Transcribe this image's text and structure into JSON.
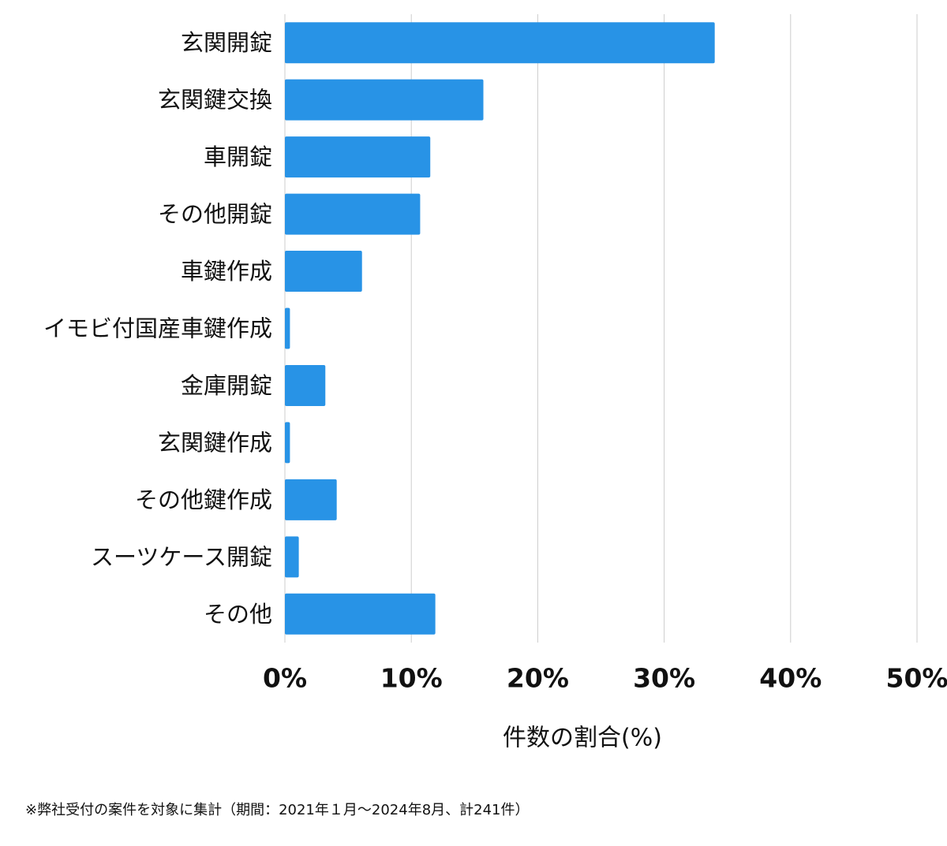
{
  "chart_data": {
    "type": "bar",
    "orientation": "horizontal",
    "categories": [
      "玄関開錠",
      "玄関鍵交換",
      "車開錠",
      "その他開錠",
      "車鍵作成",
      "イモビ付国産車鍵作成",
      "金庫開錠",
      "玄関鍵作成",
      "その他鍵作成",
      "スーツケース開錠",
      "その他"
    ],
    "values": [
      34.0,
      15.7,
      11.5,
      10.7,
      6.1,
      0.4,
      3.2,
      0.4,
      4.1,
      1.1,
      11.9
    ],
    "color": "#2893e6",
    "xlim": [
      0,
      50
    ],
    "xticks": [
      {
        "value": 0,
        "label": "0%"
      },
      {
        "value": 10,
        "label": "10%"
      },
      {
        "value": 20,
        "label": "20%"
      },
      {
        "value": 30,
        "label": "30%"
      },
      {
        "value": 40,
        "label": "40%"
      },
      {
        "value": 50,
        "label": "50%"
      }
    ],
    "xlabel": "件数の割合(%)",
    "grid": true,
    "footnote": "※弊社受付の案件を対象に集計（期間：2021年１月～2024年8月、計241件）"
  }
}
